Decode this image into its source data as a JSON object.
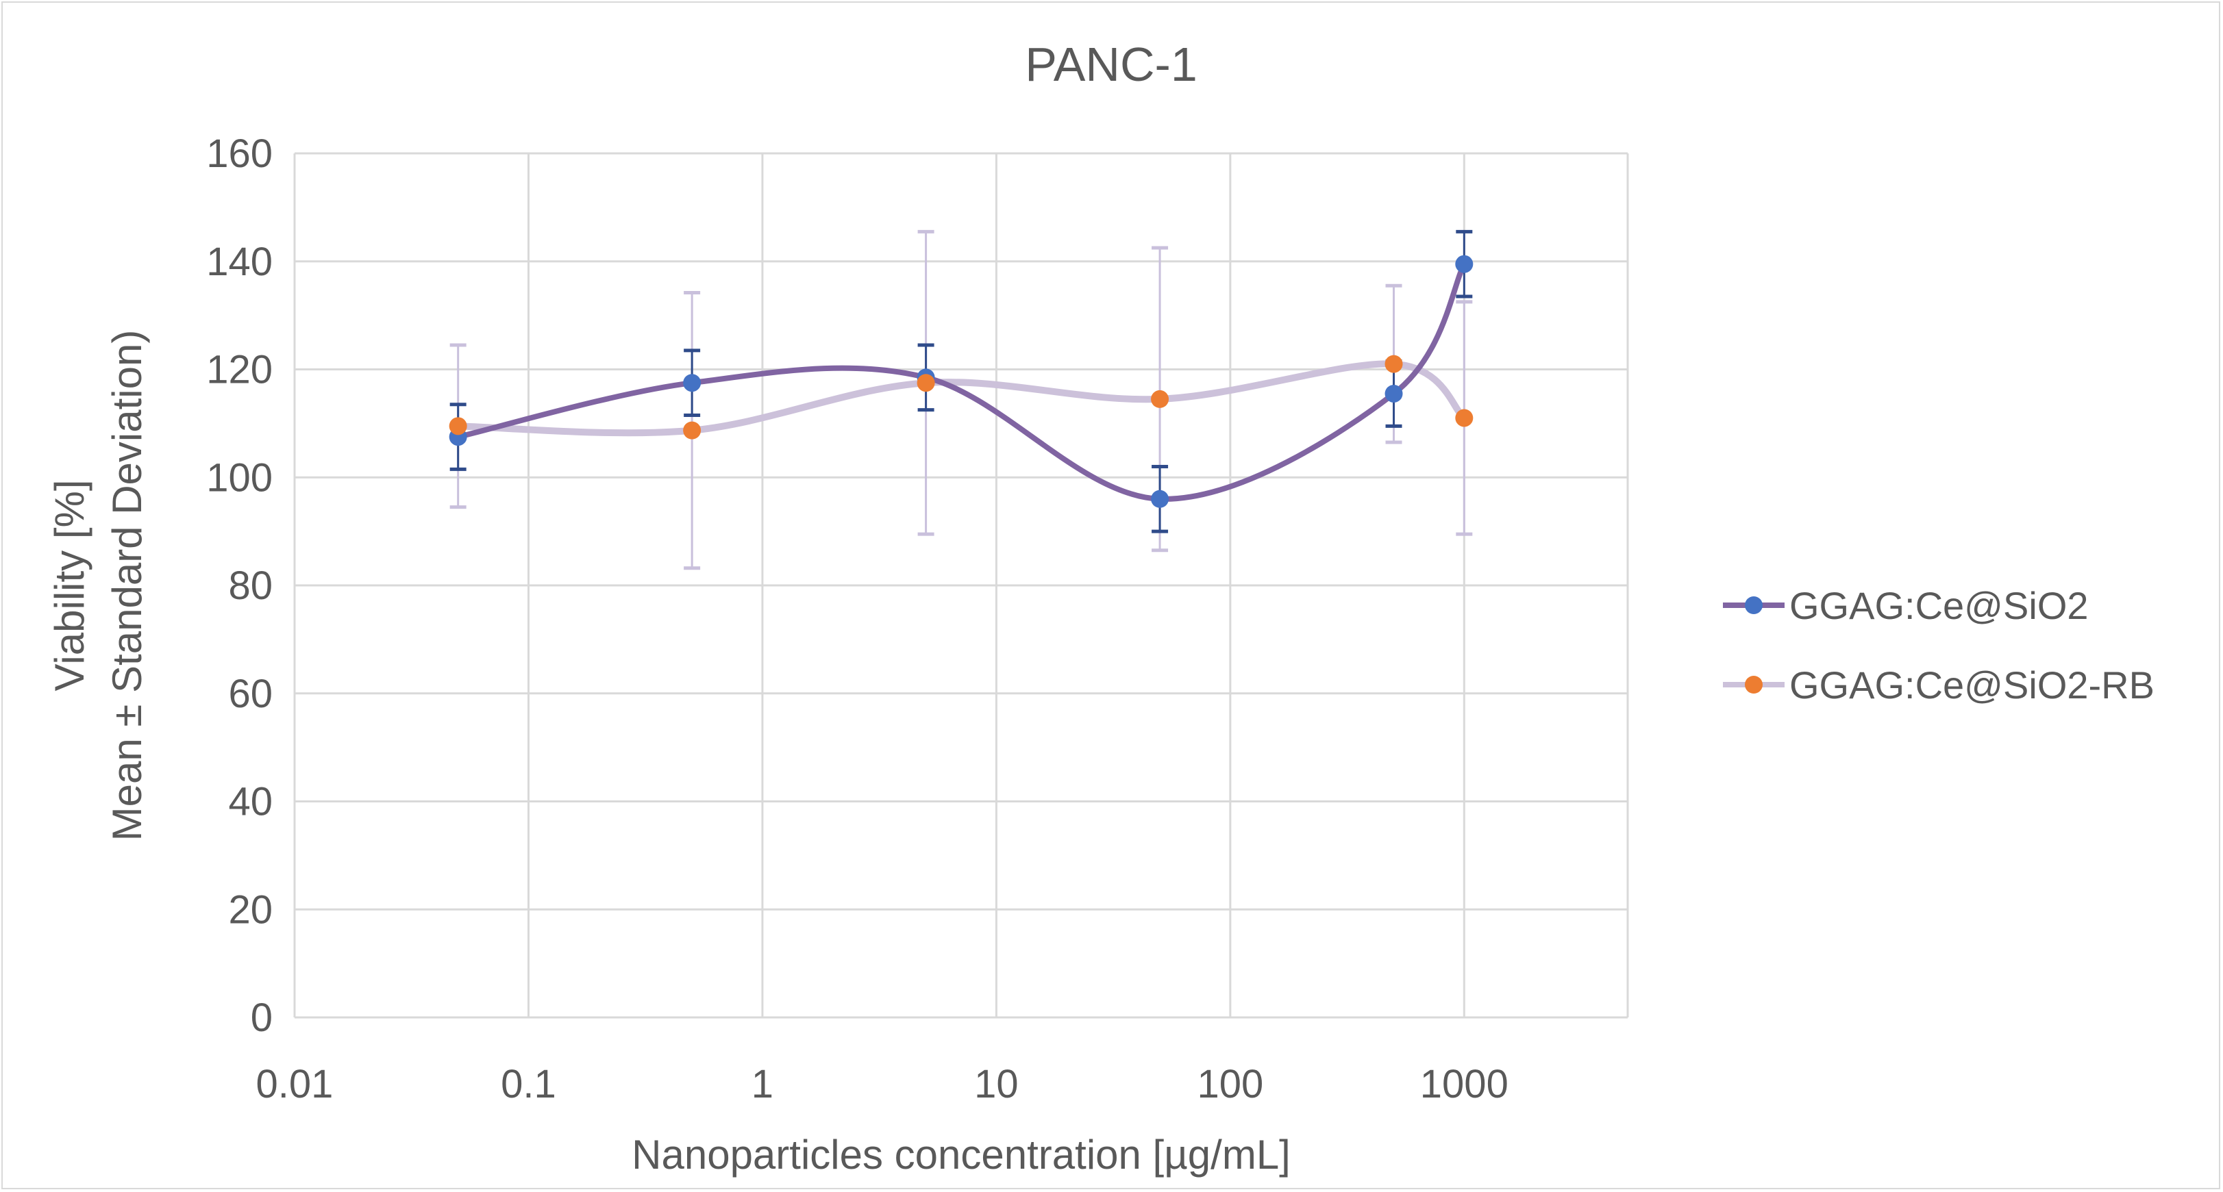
{
  "chart_data": {
    "type": "line",
    "title": "PANC-1",
    "xlabel": "Nanoparticles concentration [µg/mL]",
    "ylabel_line1": "Viability [%]",
    "ylabel_line2": "Mean ± Standard Deviation)",
    "xscale": "log",
    "xlim": [
      0.01,
      5000
    ],
    "ylim": [
      0,
      160
    ],
    "xticks": [
      "0.01",
      "0.1",
      "1",
      "10",
      "100",
      "1000"
    ],
    "xtick_values": [
      0.01,
      0.1,
      1,
      10,
      100,
      1000
    ],
    "yticks": [
      "0",
      "20",
      "40",
      "60",
      "80",
      "100",
      "120",
      "140",
      "160"
    ],
    "ytick_values": [
      0,
      20,
      40,
      60,
      80,
      100,
      120,
      140,
      160
    ],
    "grid": true,
    "smooth": true,
    "legend_position": "right",
    "x": [
      0.05,
      0.5,
      5,
      50,
      500,
      1000
    ],
    "series": [
      {
        "name": "GGAG:Ce@SiO2",
        "values": [
          107.5,
          117.5,
          118.5,
          96,
          115.5,
          139.5
        ],
        "errors": [
          6,
          6,
          6,
          6,
          6,
          6
        ],
        "line_color": "#8064a2",
        "marker_color": "#4472c4",
        "error_color": "#2f4b8a"
      },
      {
        "name": "GGAG:Ce@SiO2-RB",
        "values": [
          109.5,
          108.7,
          117.5,
          114.5,
          121,
          111
        ],
        "errors": [
          15,
          25.5,
          28,
          28,
          14.5,
          21.5
        ],
        "line_color": "#ccc1da",
        "marker_color": "#ed7d31",
        "error_color": "#c9c0dc"
      }
    ]
  }
}
